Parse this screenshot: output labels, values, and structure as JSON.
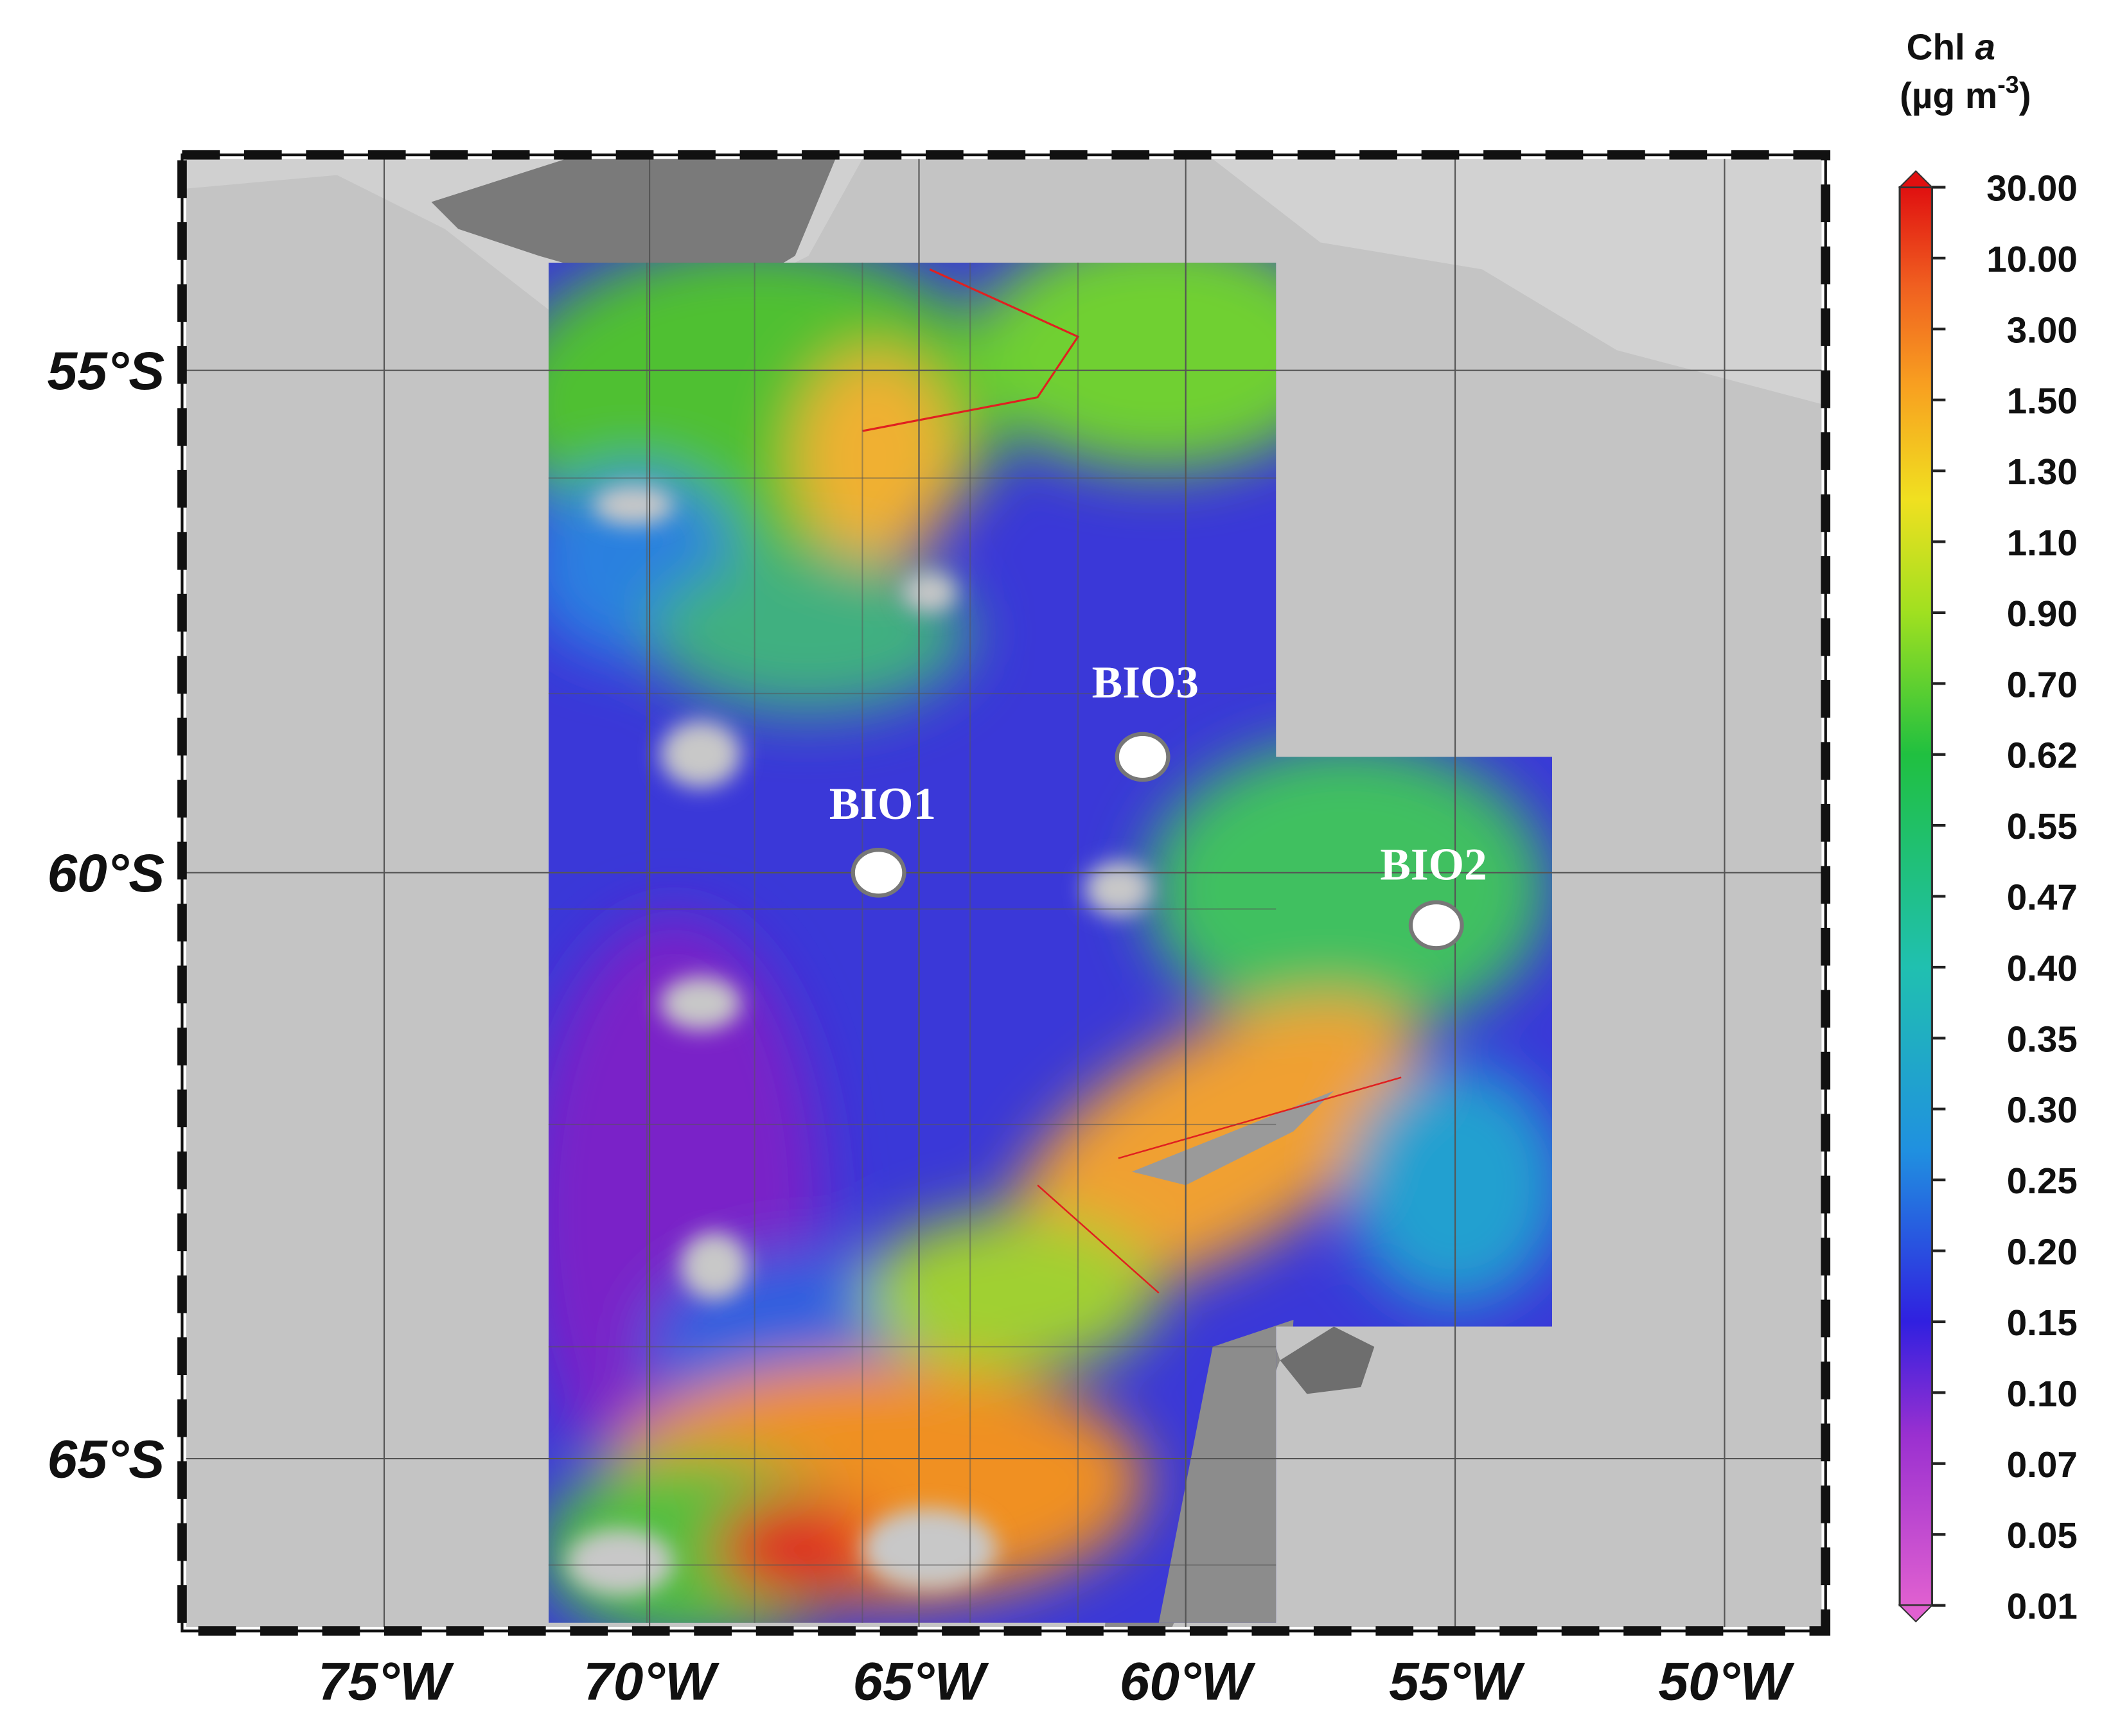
{
  "map": {
    "lat_labels": [
      "55°S",
      "60°S",
      "65°S"
    ],
    "lon_labels": [
      "75°W",
      "70°W",
      "65°W",
      "60°W",
      "55°W",
      "50°W"
    ],
    "stations": [
      "BIO1",
      "BIO2",
      "BIO3"
    ],
    "colorbar": {
      "title": "Chl",
      "title_italic": "a",
      "unit_prefix": "(µg m",
      "unit_exponent": "-3",
      "unit_suffix": ")",
      "ticks": [
        "30.00",
        "10.00",
        "3.00",
        "1.50",
        "1.30",
        "1.10",
        "0.90",
        "0.70",
        "0.62",
        "0.55",
        "0.47",
        "0.40",
        "0.35",
        "0.30",
        "0.25",
        "0.20",
        "0.15",
        "0.10",
        "0.07",
        "0.05",
        "0.01"
      ]
    }
  }
}
